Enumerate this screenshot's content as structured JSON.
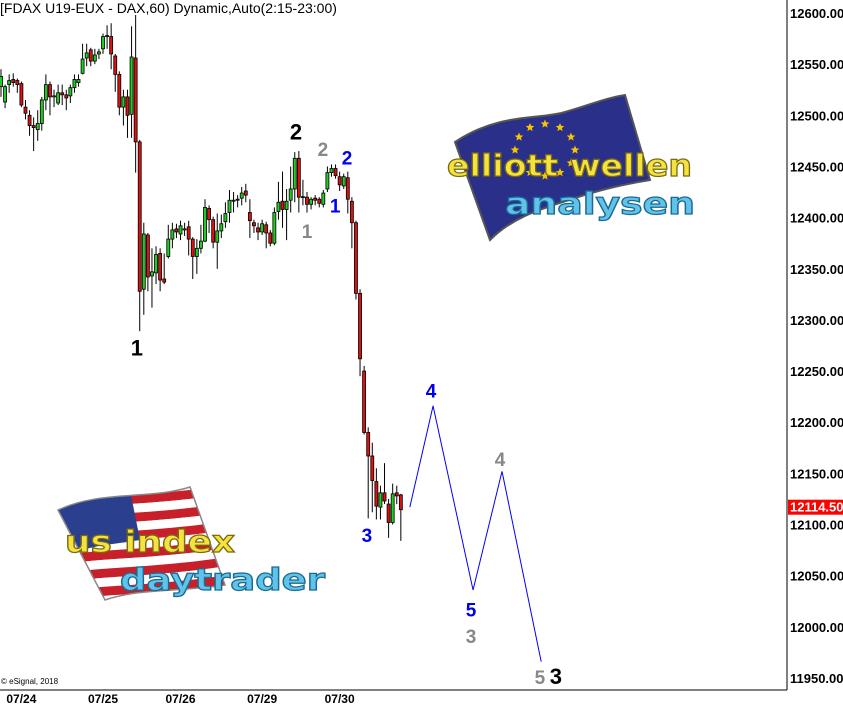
{
  "header": {
    "title": "[FDAX U19-EUX - DAX,60) Dynamic,Auto(2:15-23:00)"
  },
  "copyright": "© eSignal, 2018",
  "logos": {
    "elliott": {
      "line1": "elliott wellen",
      "line2": "analysen"
    },
    "us": {
      "line1": "us index",
      "line2": "daytrader"
    }
  },
  "colors": {
    "up": "#22cc22",
    "down": "#dd1111",
    "wick": "#000000",
    "projection": "#0000ff",
    "last_price_bg": "#ff0000",
    "label_black": "#000000",
    "label_gray": "#888888",
    "label_blue": "#0000ee"
  },
  "chart_data": {
    "type": "candlestick",
    "title": "[FDAX U19-EUX - DAX,60) Dynamic,Auto(2:15-23:00)",
    "ylim": [
      11950,
      12600
    ],
    "y_ticks": [
      "12600.00",
      "12550.00",
      "12500.00",
      "12450.00",
      "12400.00",
      "12350.00",
      "12300.00",
      "12250.00",
      "12200.00",
      "12150.00",
      "12100.00",
      "12050.00",
      "12000.00",
      "11950.00"
    ],
    "y_tick_values": [
      12600,
      12550,
      12500,
      12450,
      12400,
      12350,
      12300,
      12250,
      12200,
      12150,
      12100,
      12050,
      12000,
      11950
    ],
    "x_ticks": [
      {
        "index": 5,
        "label": "07/24"
      },
      {
        "index": 25,
        "label": "07/25"
      },
      {
        "index": 44,
        "label": "07/26"
      },
      {
        "index": 64,
        "label": "07/29"
      },
      {
        "index": 83,
        "label": "07/30"
      }
    ],
    "last_price": "12114.50",
    "last_price_value": 12114.5,
    "grid": false,
    "candles_ohlc": [
      [
        12528,
        12545,
        12518,
        12538
      ],
      [
        12513,
        12530,
        12507,
        12528
      ],
      [
        12530,
        12540,
        12522,
        12534
      ],
      [
        12535,
        12541,
        12528,
        12532
      ],
      [
        12534,
        12536,
        12522,
        12530
      ],
      [
        12531,
        12533,
        12508,
        12510
      ],
      [
        12508,
        12515,
        12496,
        12502
      ],
      [
        12500,
        12505,
        12480,
        12490
      ],
      [
        12490,
        12498,
        12465,
        12488
      ],
      [
        12486,
        12505,
        12475,
        12492
      ],
      [
        12492,
        12518,
        12485,
        12515
      ],
      [
        12515,
        12540,
        12505,
        12530
      ],
      [
        12530,
        12533,
        12500,
        12518
      ],
      [
        12518,
        12525,
        12508,
        12519
      ],
      [
        12512,
        12530,
        12510,
        12522
      ],
      [
        12522,
        12530,
        12510,
        12520
      ],
      [
        12520,
        12525,
        12505,
        12517
      ],
      [
        12519,
        12530,
        12512,
        12527
      ],
      [
        12527,
        12540,
        12522,
        12535
      ],
      [
        12532,
        12540,
        12528,
        12535
      ],
      [
        12541,
        12570,
        12540,
        12555
      ],
      [
        12556,
        12570,
        12548,
        12561
      ],
      [
        12564,
        12566,
        12548,
        12553
      ],
      [
        12553,
        12565,
        12550,
        12559
      ],
      [
        12560,
        12565,
        12555,
        12562
      ],
      [
        12565,
        12580,
        12560,
        12577
      ],
      [
        12577,
        12588,
        12565,
        12578
      ],
      [
        12577,
        12590,
        12545,
        12560
      ],
      [
        12558,
        12560,
        12523,
        12540
      ],
      [
        12540,
        12543,
        12500,
        12508
      ],
      [
        12508,
        12525,
        12490,
        12518
      ],
      [
        12518,
        12525,
        12478,
        12500
      ],
      [
        12501,
        12587,
        12478,
        12557
      ],
      [
        12556,
        12598,
        12444,
        12474
      ],
      [
        12474,
        12476,
        12289,
        12328
      ],
      [
        12330,
        12395,
        12305,
        12384
      ],
      [
        12383,
        12385,
        12328,
        12342
      ],
      [
        12343,
        12370,
        12312,
        12347
      ],
      [
        12346,
        12372,
        12335,
        12364
      ],
      [
        12365,
        12370,
        12328,
        12339
      ],
      [
        12340,
        12365,
        12335,
        12337
      ],
      [
        12362,
        12393,
        12360,
        12379
      ],
      [
        12379,
        12395,
        12370,
        12388
      ],
      [
        12389,
        12394,
        12380,
        12386
      ],
      [
        12384,
        12397,
        12378,
        12392
      ],
      [
        12388,
        12395,
        12382,
        12389
      ],
      [
        12391,
        12397,
        12363,
        12379
      ],
      [
        12379,
        12381,
        12340,
        12362
      ],
      [
        12362,
        12379,
        12345,
        12370
      ],
      [
        12370,
        12393,
        12365,
        12377
      ],
      [
        12377,
        12418,
        12376,
        12410
      ],
      [
        12409,
        12412,
        12385,
        12398
      ],
      [
        12398,
        12401,
        12370,
        12376
      ],
      [
        12376,
        12404,
        12350,
        12387
      ],
      [
        12387,
        12403,
        12380,
        12394
      ],
      [
        12396,
        12415,
        12390,
        12404
      ],
      [
        12405,
        12427,
        12395,
        12417
      ],
      [
        12416,
        12425,
        12405,
        12417
      ],
      [
        12417,
        12422,
        12410,
        12418
      ],
      [
        12419,
        12430,
        12412,
        12424
      ],
      [
        12426,
        12433,
        12415,
        12422
      ],
      [
        12405,
        12418,
        12380,
        12397
      ],
      [
        12395,
        12398,
        12385,
        12392
      ],
      [
        12390,
        12395,
        12378,
        12386
      ],
      [
        12386,
        12398,
        12383,
        12394
      ],
      [
        12393,
        12396,
        12370,
        12385
      ],
      [
        12385,
        12388,
        12372,
        12375
      ],
      [
        12375,
        12410,
        12373,
        12405
      ],
      [
        12406,
        12435,
        12398,
        12415
      ],
      [
        12416,
        12445,
        12390,
        12408
      ],
      [
        12408,
        12428,
        12378,
        12416
      ],
      [
        12417,
        12450,
        12405,
        12428
      ],
      [
        12428,
        12464,
        12415,
        12458
      ],
      [
        12458,
        12465,
        12405,
        12420
      ],
      [
        12420,
        12437,
        12412,
        12420.5
      ],
      [
        12420,
        12425,
        12405,
        12413
      ],
      [
        12413,
        12420,
        12408,
        12418
      ],
      [
        12419,
        12422,
        12412,
        12417
      ],
      [
        12418,
        12420,
        12410,
        12414
      ],
      [
        12413,
        12427,
        12410,
        12424
      ],
      [
        12428,
        12450,
        12425,
        12444
      ],
      [
        12444,
        12452,
        12440,
        12448
      ],
      [
        12448,
        12452,
        12438,
        12441
      ],
      [
        12440,
        12445,
        12426,
        12432
      ],
      [
        12431,
        12443,
        12428,
        12440
      ],
      [
        12439,
        12445,
        12404,
        12418
      ],
      [
        12416,
        12420,
        12370,
        12395
      ],
      [
        12395,
        12397,
        12320,
        12326
      ],
      [
        12326,
        12330,
        12245,
        12262
      ],
      [
        12250,
        12255,
        12188,
        12190
      ],
      [
        12190,
        12195,
        12106,
        12167
      ],
      [
        12167,
        12180,
        12112,
        12143
      ],
      [
        12142,
        12155,
        12105,
        12118
      ],
      [
        12117,
        12138,
        12105,
        12131
      ],
      [
        12131,
        12160,
        12120,
        12123
      ],
      [
        12120,
        12125,
        12087,
        12102
      ],
      [
        12102,
        12140,
        12100,
        12130
      ],
      [
        12131,
        12138,
        12120,
        12128
      ],
      [
        12129,
        12130,
        12084,
        12114.5
      ]
    ],
    "projection": [
      {
        "index": 100.2,
        "price": 12117
      },
      {
        "index": 105.9,
        "price": 12216
      },
      {
        "index": 115.7,
        "price": 12036
      },
      {
        "index": 122.8,
        "price": 12152
      },
      {
        "index": 132.4,
        "price": 11966
      }
    ],
    "annotations": [
      {
        "text": "1",
        "color": "black",
        "index": 33.3,
        "price": 12272
      },
      {
        "text": "2",
        "color": "black",
        "index": 72.3,
        "price": 12483
      },
      {
        "text": "2",
        "color": "gray",
        "index": 78.9,
        "price": 12467
      },
      {
        "text": "2",
        "color": "blue",
        "index": 84.8,
        "price": 12459
      },
      {
        "text": "1",
        "color": "blue",
        "index": 81.9,
        "price": 12412
      },
      {
        "text": "1",
        "color": "gray",
        "index": 75.0,
        "price": 12387
      },
      {
        "text": "3",
        "color": "blue",
        "index": 89.7,
        "price": 12090
      },
      {
        "text": "4",
        "color": "blue",
        "index": 105.4,
        "price": 12231
      },
      {
        "text": "5",
        "color": "blue",
        "index": 115.2,
        "price": 12017
      },
      {
        "text": "3",
        "color": "gray",
        "index": 115.2,
        "price": 11995
      },
      {
        "text": "4",
        "color": "gray",
        "index": 122.3,
        "price": 12164
      },
      {
        "text": "5",
        "color": "gray",
        "index": 132.1,
        "price": 11951
      },
      {
        "text": "3",
        "color": "black",
        "index": 136.0,
        "price": 11951
      }
    ]
  }
}
